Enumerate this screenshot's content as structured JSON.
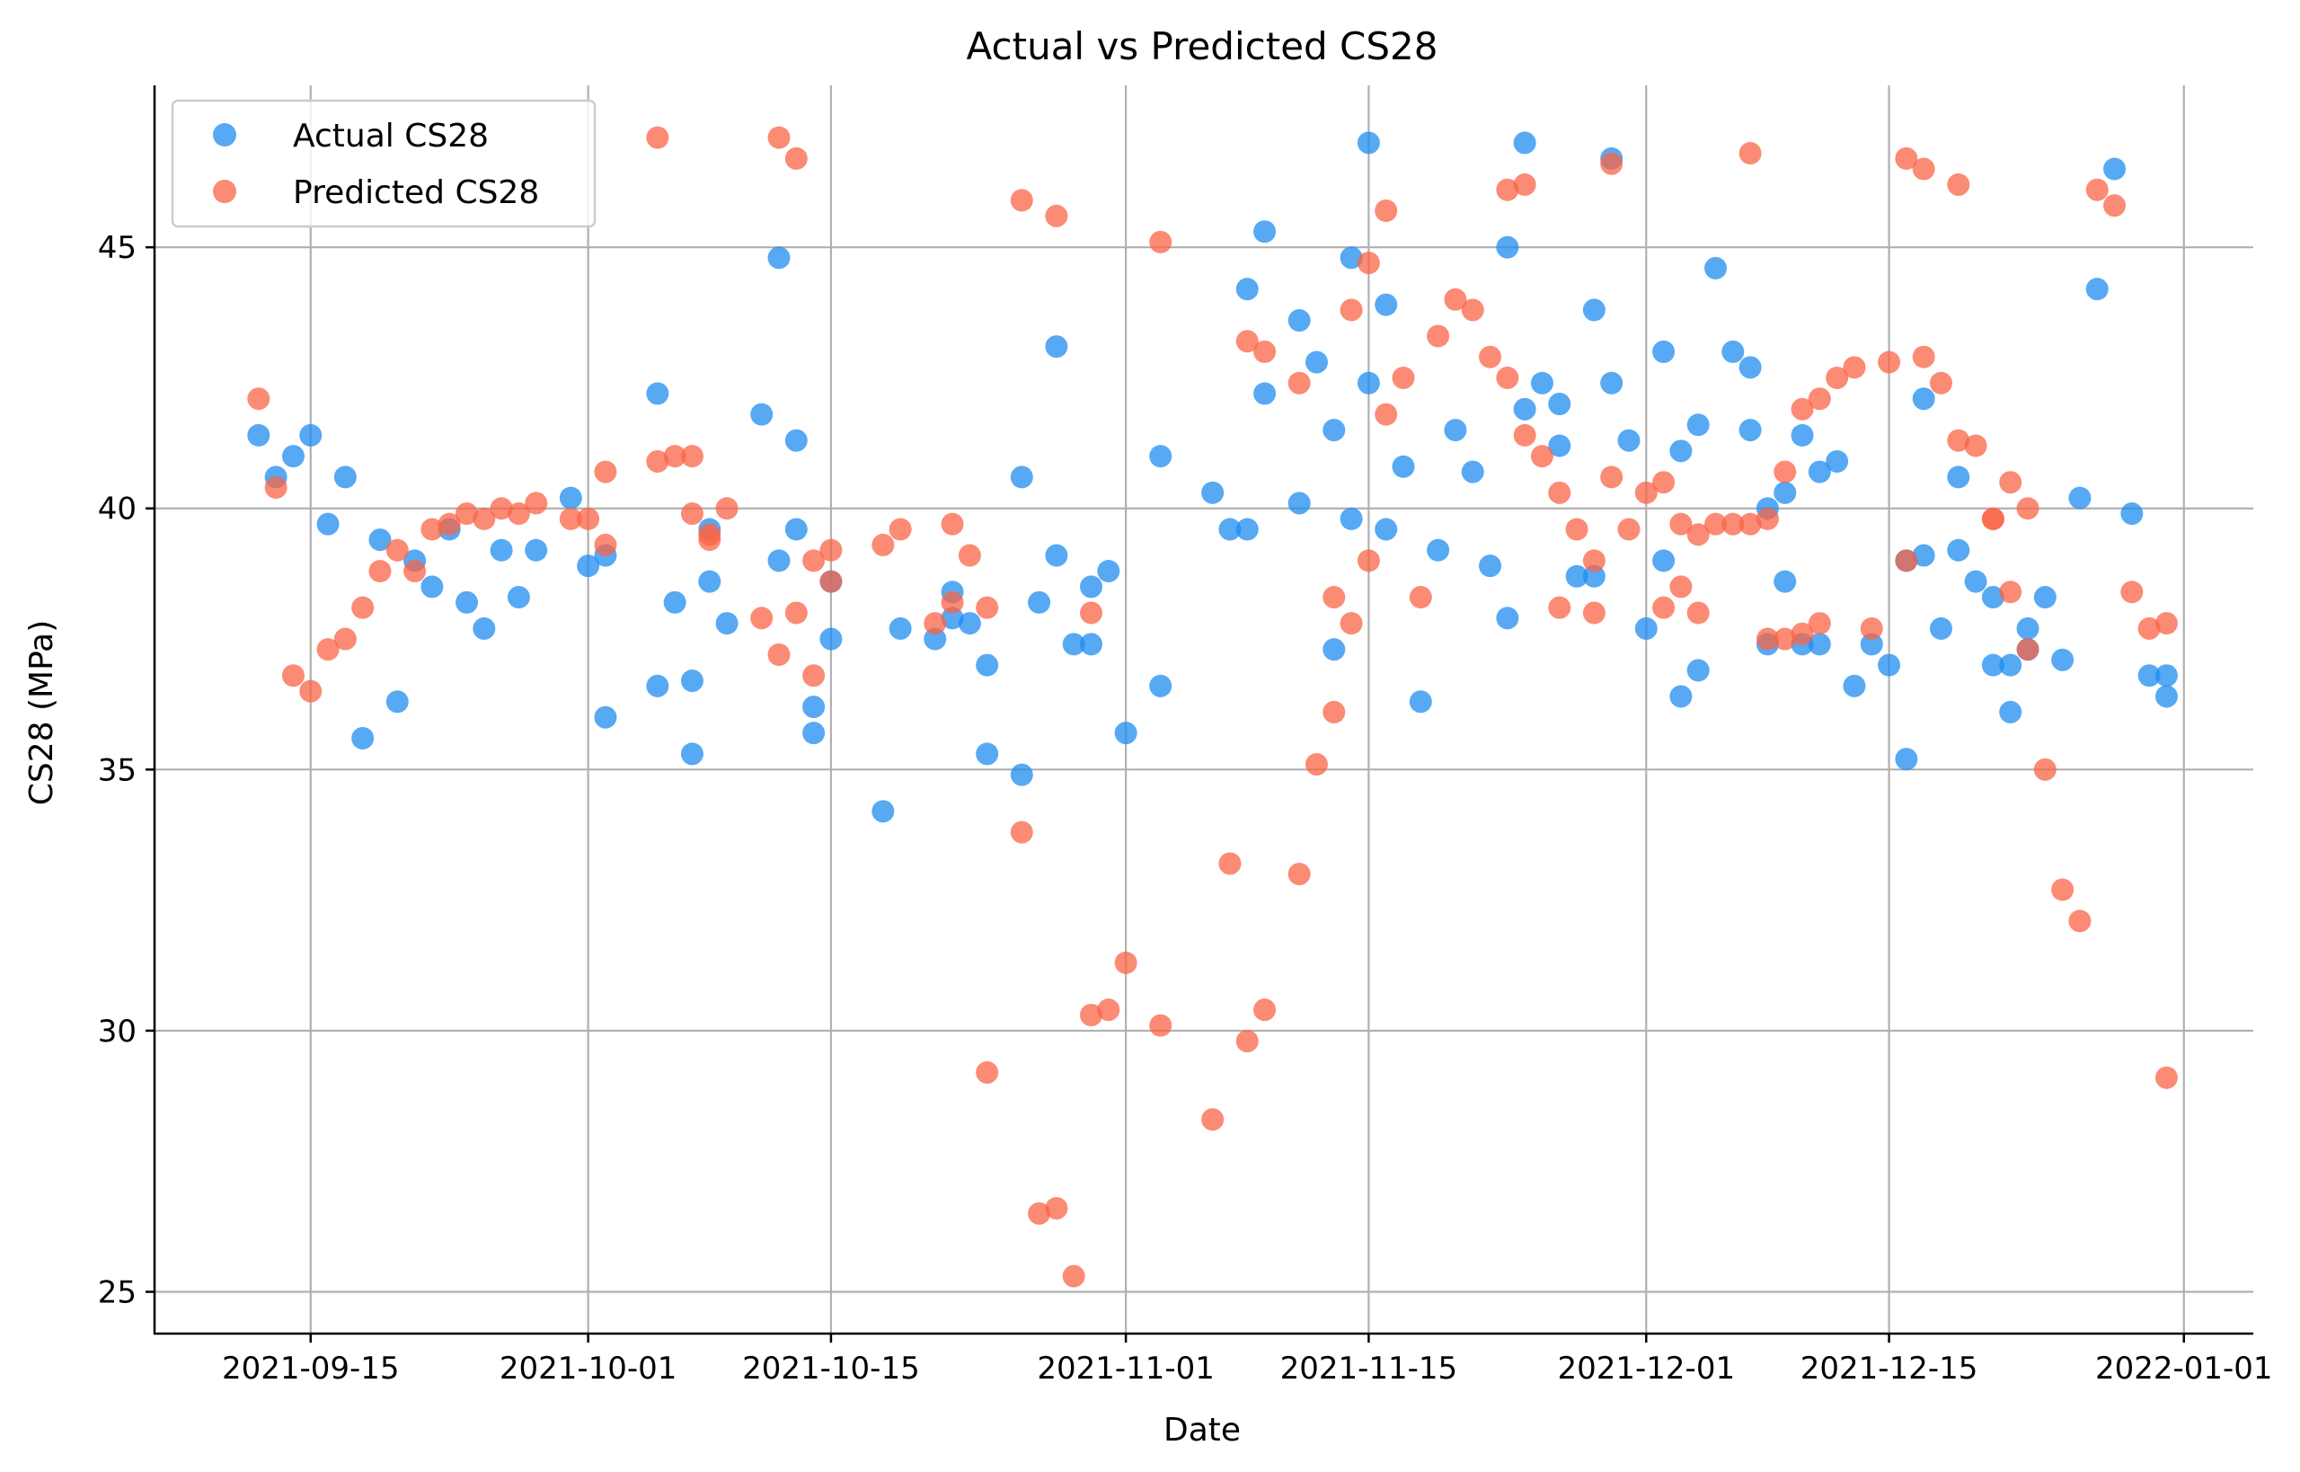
{
  "chart_data": {
    "type": "scatter",
    "title": "Actual vs Predicted CS28",
    "xlabel": "Date",
    "ylabel": "CS28 (MPa)",
    "x_axis": "date",
    "xlim": [
      "2021-09-06",
      "2022-01-05"
    ],
    "ylim": [
      24.2,
      48.1
    ],
    "x_ticks": [
      "2021-09-15",
      "2021-10-01",
      "2021-10-15",
      "2021-11-01",
      "2021-11-15",
      "2021-12-01",
      "2021-12-15",
      "2022-01-01"
    ],
    "y_ticks": [
      25,
      30,
      35,
      40,
      45
    ],
    "grid": true,
    "legend": "top-left",
    "marker_alpha": 0.75,
    "series": [
      {
        "name": "Actual CS28",
        "color": "#1f8cf0",
        "points": [
          [
            "2021-09-12",
            41.4
          ],
          [
            "2021-09-13",
            40.6
          ],
          [
            "2021-09-14",
            41.0
          ],
          [
            "2021-09-15",
            41.4
          ],
          [
            "2021-09-16",
            39.7
          ],
          [
            "2021-09-17",
            40.6
          ],
          [
            "2021-09-18",
            35.6
          ],
          [
            "2021-09-19",
            39.4
          ],
          [
            "2021-09-20",
            36.3
          ],
          [
            "2021-09-21",
            39.0
          ],
          [
            "2021-09-22",
            38.5
          ],
          [
            "2021-09-23",
            39.6
          ],
          [
            "2021-09-24",
            38.2
          ],
          [
            "2021-09-25",
            37.7
          ],
          [
            "2021-09-26",
            39.2
          ],
          [
            "2021-09-27",
            38.3
          ],
          [
            "2021-09-28",
            39.2
          ],
          [
            "2021-09-30",
            40.2
          ],
          [
            "2021-10-01",
            38.9
          ],
          [
            "2021-10-02",
            39.1
          ],
          [
            "2021-10-02",
            36.0
          ],
          [
            "2021-10-05",
            42.2
          ],
          [
            "2021-10-05",
            36.6
          ],
          [
            "2021-10-06",
            38.2
          ],
          [
            "2021-10-07",
            36.7
          ],
          [
            "2021-10-07",
            35.3
          ],
          [
            "2021-10-08",
            39.6
          ],
          [
            "2021-10-08",
            38.6
          ],
          [
            "2021-10-09",
            37.8
          ],
          [
            "2021-10-11",
            41.8
          ],
          [
            "2021-10-12",
            44.8
          ],
          [
            "2021-10-12",
            39.0
          ],
          [
            "2021-10-13",
            41.3
          ],
          [
            "2021-10-13",
            39.6
          ],
          [
            "2021-10-14",
            36.2
          ],
          [
            "2021-10-14",
            35.7
          ],
          [
            "2021-10-15",
            38.6
          ],
          [
            "2021-10-15",
            37.5
          ],
          [
            "2021-10-18",
            34.2
          ],
          [
            "2021-10-19",
            37.7
          ],
          [
            "2021-10-21",
            37.5
          ],
          [
            "2021-10-22",
            38.4
          ],
          [
            "2021-10-22",
            37.9
          ],
          [
            "2021-10-23",
            37.8
          ],
          [
            "2021-10-24",
            37.0
          ],
          [
            "2021-10-24",
            35.3
          ],
          [
            "2021-10-26",
            40.6
          ],
          [
            "2021-10-26",
            34.9
          ],
          [
            "2021-10-27",
            38.2
          ],
          [
            "2021-10-28",
            43.1
          ],
          [
            "2021-10-28",
            39.1
          ],
          [
            "2021-10-29",
            37.4
          ],
          [
            "2021-10-30",
            38.5
          ],
          [
            "2021-10-30",
            37.4
          ],
          [
            "2021-10-31",
            38.8
          ],
          [
            "2021-11-01",
            35.7
          ],
          [
            "2021-11-03",
            41.0
          ],
          [
            "2021-11-03",
            36.6
          ],
          [
            "2021-11-06",
            40.3
          ],
          [
            "2021-11-07",
            39.6
          ],
          [
            "2021-11-08",
            44.2
          ],
          [
            "2021-11-08",
            39.6
          ],
          [
            "2021-11-09",
            45.3
          ],
          [
            "2021-11-09",
            42.2
          ],
          [
            "2021-11-11",
            43.6
          ],
          [
            "2021-11-11",
            40.1
          ],
          [
            "2021-11-12",
            42.8
          ],
          [
            "2021-11-13",
            41.5
          ],
          [
            "2021-11-13",
            37.3
          ],
          [
            "2021-11-14",
            44.8
          ],
          [
            "2021-11-14",
            39.8
          ],
          [
            "2021-11-15",
            47.0
          ],
          [
            "2021-11-15",
            42.4
          ],
          [
            "2021-11-16",
            43.9
          ],
          [
            "2021-11-16",
            39.6
          ],
          [
            "2021-11-17",
            40.8
          ],
          [
            "2021-11-18",
            36.3
          ],
          [
            "2021-11-19",
            39.2
          ],
          [
            "2021-11-20",
            41.5
          ],
          [
            "2021-11-21",
            40.7
          ],
          [
            "2021-11-22",
            38.9
          ],
          [
            "2021-11-23",
            45.0
          ],
          [
            "2021-11-23",
            37.9
          ],
          [
            "2021-11-24",
            47.0
          ],
          [
            "2021-11-24",
            41.9
          ],
          [
            "2021-11-25",
            42.4
          ],
          [
            "2021-11-26",
            42.0
          ],
          [
            "2021-11-26",
            41.2
          ],
          [
            "2021-11-27",
            38.7
          ],
          [
            "2021-11-28",
            43.8
          ],
          [
            "2021-11-28",
            38.7
          ],
          [
            "2021-11-29",
            46.7
          ],
          [
            "2021-11-29",
            42.4
          ],
          [
            "2021-11-30",
            41.3
          ],
          [
            "2021-12-01",
            37.7
          ],
          [
            "2021-12-02",
            43.0
          ],
          [
            "2021-12-02",
            39.0
          ],
          [
            "2021-12-03",
            41.1
          ],
          [
            "2021-12-03",
            36.4
          ],
          [
            "2021-12-04",
            41.6
          ],
          [
            "2021-12-04",
            36.9
          ],
          [
            "2021-12-05",
            44.6
          ],
          [
            "2021-12-06",
            43.0
          ],
          [
            "2021-12-07",
            42.7
          ],
          [
            "2021-12-07",
            41.5
          ],
          [
            "2021-12-08",
            40.0
          ],
          [
            "2021-12-08",
            37.4
          ],
          [
            "2021-12-09",
            40.3
          ],
          [
            "2021-12-09",
            38.6
          ],
          [
            "2021-12-10",
            41.4
          ],
          [
            "2021-12-10",
            37.4
          ],
          [
            "2021-12-11",
            40.7
          ],
          [
            "2021-12-11",
            37.4
          ],
          [
            "2021-12-12",
            40.9
          ],
          [
            "2021-12-13",
            36.6
          ],
          [
            "2021-12-14",
            37.4
          ],
          [
            "2021-12-15",
            37.0
          ],
          [
            "2021-12-16",
            39.0
          ],
          [
            "2021-12-16",
            35.2
          ],
          [
            "2021-12-17",
            42.1
          ],
          [
            "2021-12-17",
            39.1
          ],
          [
            "2021-12-18",
            37.7
          ],
          [
            "2021-12-19",
            40.6
          ],
          [
            "2021-12-19",
            39.2
          ],
          [
            "2021-12-20",
            38.6
          ],
          [
            "2021-12-21",
            38.3
          ],
          [
            "2021-12-21",
            37.0
          ],
          [
            "2021-12-22",
            37.0
          ],
          [
            "2021-12-22",
            36.1
          ],
          [
            "2021-12-23",
            37.7
          ],
          [
            "2021-12-23",
            37.3
          ],
          [
            "2021-12-24",
            38.3
          ],
          [
            "2021-12-25",
            37.1
          ],
          [
            "2021-12-26",
            40.2
          ],
          [
            "2021-12-27",
            44.2
          ],
          [
            "2021-12-28",
            46.5
          ],
          [
            "2021-12-29",
            39.9
          ],
          [
            "2021-12-30",
            36.8
          ],
          [
            "2021-12-31",
            36.8
          ],
          [
            "2021-12-31",
            36.4
          ]
        ]
      },
      {
        "name": "Predicted CS28",
        "color": "#fa6446",
        "points": [
          [
            "2021-09-12",
            42.1
          ],
          [
            "2021-09-13",
            40.4
          ],
          [
            "2021-09-14",
            36.8
          ],
          [
            "2021-09-15",
            36.5
          ],
          [
            "2021-09-16",
            37.3
          ],
          [
            "2021-09-17",
            37.5
          ],
          [
            "2021-09-18",
            38.1
          ],
          [
            "2021-09-19",
            38.8
          ],
          [
            "2021-09-20",
            39.2
          ],
          [
            "2021-09-21",
            38.8
          ],
          [
            "2021-09-22",
            39.6
          ],
          [
            "2021-09-23",
            39.7
          ],
          [
            "2021-09-24",
            39.9
          ],
          [
            "2021-09-25",
            39.8
          ],
          [
            "2021-09-26",
            40.0
          ],
          [
            "2021-09-27",
            39.9
          ],
          [
            "2021-09-28",
            40.1
          ],
          [
            "2021-09-30",
            39.8
          ],
          [
            "2021-10-01",
            39.8
          ],
          [
            "2021-10-02",
            40.7
          ],
          [
            "2021-10-02",
            39.3
          ],
          [
            "2021-10-05",
            47.1
          ],
          [
            "2021-10-05",
            40.9
          ],
          [
            "2021-10-06",
            41.0
          ],
          [
            "2021-10-07",
            41.0
          ],
          [
            "2021-10-07",
            39.9
          ],
          [
            "2021-10-08",
            39.4
          ],
          [
            "2021-10-08",
            39.5
          ],
          [
            "2021-10-09",
            40.0
          ],
          [
            "2021-10-11",
            37.9
          ],
          [
            "2021-10-12",
            47.1
          ],
          [
            "2021-10-12",
            37.2
          ],
          [
            "2021-10-13",
            46.7
          ],
          [
            "2021-10-13",
            38.0
          ],
          [
            "2021-10-14",
            39.0
          ],
          [
            "2021-10-14",
            36.8
          ],
          [
            "2021-10-15",
            39.2
          ],
          [
            "2021-10-15",
            38.6
          ],
          [
            "2021-10-18",
            39.3
          ],
          [
            "2021-10-19",
            39.6
          ],
          [
            "2021-10-21",
            37.8
          ],
          [
            "2021-10-22",
            39.7
          ],
          [
            "2021-10-22",
            38.2
          ],
          [
            "2021-10-23",
            39.1
          ],
          [
            "2021-10-24",
            38.1
          ],
          [
            "2021-10-24",
            29.2
          ],
          [
            "2021-10-26",
            45.9
          ],
          [
            "2021-10-26",
            33.8
          ],
          [
            "2021-10-27",
            26.5
          ],
          [
            "2021-10-28",
            45.6
          ],
          [
            "2021-10-28",
            26.6
          ],
          [
            "2021-10-29",
            25.3
          ],
          [
            "2021-10-30",
            38.0
          ],
          [
            "2021-10-30",
            30.3
          ],
          [
            "2021-10-31",
            30.4
          ],
          [
            "2021-11-01",
            31.3
          ],
          [
            "2021-11-03",
            45.1
          ],
          [
            "2021-11-03",
            30.1
          ],
          [
            "2021-11-06",
            28.3
          ],
          [
            "2021-11-07",
            33.2
          ],
          [
            "2021-11-08",
            43.2
          ],
          [
            "2021-11-08",
            29.8
          ],
          [
            "2021-11-09",
            43.0
          ],
          [
            "2021-11-09",
            30.4
          ],
          [
            "2021-11-11",
            42.4
          ],
          [
            "2021-11-11",
            33.0
          ],
          [
            "2021-11-12",
            35.1
          ],
          [
            "2021-11-13",
            38.3
          ],
          [
            "2021-11-13",
            36.1
          ],
          [
            "2021-11-14",
            43.8
          ],
          [
            "2021-11-14",
            37.8
          ],
          [
            "2021-11-15",
            44.7
          ],
          [
            "2021-11-15",
            39.0
          ],
          [
            "2021-11-16",
            45.7
          ],
          [
            "2021-11-16",
            41.8
          ],
          [
            "2021-11-17",
            42.5
          ],
          [
            "2021-11-18",
            38.3
          ],
          [
            "2021-11-19",
            43.3
          ],
          [
            "2021-11-20",
            44.0
          ],
          [
            "2021-11-21",
            43.8
          ],
          [
            "2021-11-22",
            42.9
          ],
          [
            "2021-11-23",
            46.1
          ],
          [
            "2021-11-23",
            42.5
          ],
          [
            "2021-11-24",
            46.2
          ],
          [
            "2021-11-24",
            41.4
          ],
          [
            "2021-11-25",
            41.0
          ],
          [
            "2021-11-26",
            40.3
          ],
          [
            "2021-11-26",
            38.1
          ],
          [
            "2021-11-27",
            39.6
          ],
          [
            "2021-11-28",
            39.0
          ],
          [
            "2021-11-28",
            38.0
          ],
          [
            "2021-11-29",
            46.6
          ],
          [
            "2021-11-29",
            40.6
          ],
          [
            "2021-11-30",
            39.6
          ],
          [
            "2021-12-01",
            40.3
          ],
          [
            "2021-12-02",
            40.5
          ],
          [
            "2021-12-02",
            38.1
          ],
          [
            "2021-12-03",
            39.7
          ],
          [
            "2021-12-03",
            38.5
          ],
          [
            "2021-12-04",
            39.5
          ],
          [
            "2021-12-04",
            38.0
          ],
          [
            "2021-12-05",
            39.7
          ],
          [
            "2021-12-06",
            39.7
          ],
          [
            "2021-12-07",
            46.8
          ],
          [
            "2021-12-07",
            39.7
          ],
          [
            "2021-12-08",
            39.8
          ],
          [
            "2021-12-08",
            37.5
          ],
          [
            "2021-12-09",
            40.7
          ],
          [
            "2021-12-09",
            37.5
          ],
          [
            "2021-12-10",
            41.9
          ],
          [
            "2021-12-10",
            37.6
          ],
          [
            "2021-12-11",
            42.1
          ],
          [
            "2021-12-11",
            37.8
          ],
          [
            "2021-12-12",
            42.5
          ],
          [
            "2021-12-13",
            42.7
          ],
          [
            "2021-12-14",
            37.7
          ],
          [
            "2021-12-15",
            42.8
          ],
          [
            "2021-12-16",
            46.7
          ],
          [
            "2021-12-16",
            39.0
          ],
          [
            "2021-12-17",
            46.5
          ],
          [
            "2021-12-17",
            42.9
          ],
          [
            "2021-12-18",
            42.4
          ],
          [
            "2021-12-19",
            46.2
          ],
          [
            "2021-12-19",
            41.3
          ],
          [
            "2021-12-20",
            41.2
          ],
          [
            "2021-12-21",
            39.8
          ],
          [
            "2021-12-21",
            39.8
          ],
          [
            "2021-12-22",
            40.5
          ],
          [
            "2021-12-22",
            38.4
          ],
          [
            "2021-12-23",
            40.0
          ],
          [
            "2021-12-23",
            37.3
          ],
          [
            "2021-12-24",
            35.0
          ],
          [
            "2021-12-25",
            32.7
          ],
          [
            "2021-12-26",
            32.1
          ],
          [
            "2021-12-27",
            46.1
          ],
          [
            "2021-12-28",
            45.8
          ],
          [
            "2021-12-29",
            38.4
          ],
          [
            "2021-12-30",
            37.7
          ],
          [
            "2021-12-31",
            37.8
          ],
          [
            "2021-12-31",
            29.1
          ]
        ]
      }
    ]
  }
}
